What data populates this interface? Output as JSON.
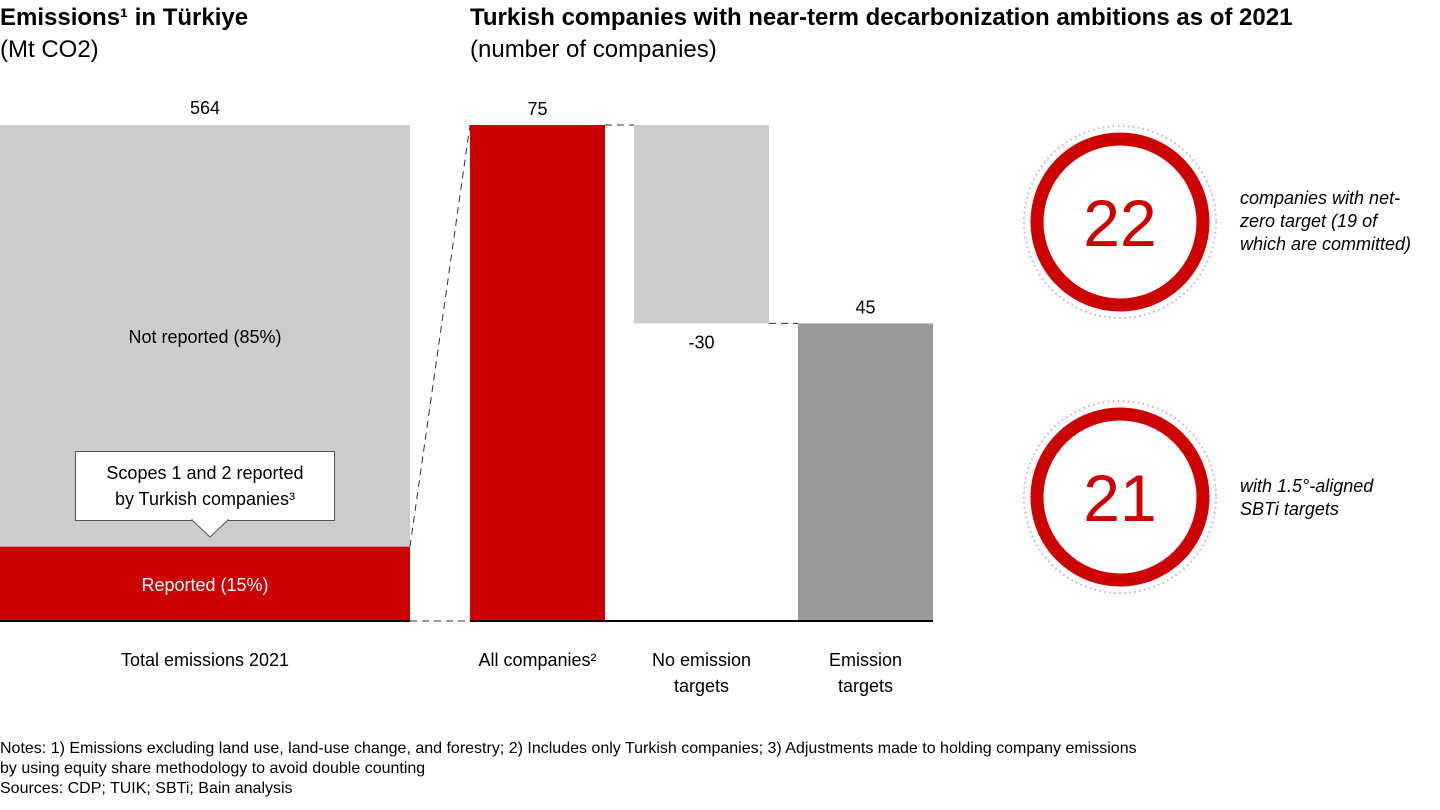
{
  "left_title": {
    "main": "Emissions¹ in Türkiye",
    "sub": "(Mt CO2)"
  },
  "right_title": {
    "main": "Turkish companies with near-term decarbonization ambitions as of 2021",
    "sub": "(number of companies)"
  },
  "callout": {
    "line1": "Scopes 1 and 2 reported",
    "line2": "by Turkish companies³"
  },
  "stats": [
    {
      "value": "22",
      "text": [
        "companies with net-",
        "zero target (19 of",
        "which are committed)"
      ]
    },
    {
      "value": "21",
      "text": [
        "with 1.5°-aligned",
        "SBTi targets"
      ]
    }
  ],
  "notes": {
    "line1": "Notes: 1) Emissions excluding land use, land-use change, and forestry; 2) Includes only Turkish companies; 3) Adjustments made to holding company emissions",
    "line2": "by using equity share methodology to avoid double counting",
    "sources": "Sources: CDP; TUIK; SBTi; Bain analysis"
  },
  "colors": {
    "red": "#cc0000",
    "light_gray": "#cccccc",
    "dark_gray": "#999999",
    "ring_dots": "#d9a8d3"
  },
  "chart_data": [
    {
      "type": "bar",
      "stacked": true,
      "categories": [
        "Total emissions 2021"
      ],
      "total": 564,
      "total_label": "564",
      "series": [
        {
          "name": "Reported (15%)",
          "share": 0.15,
          "color": "#cc0000"
        },
        {
          "name": "Not reported (85%)",
          "share": 0.85,
          "color": "#cccccc"
        }
      ]
    },
    {
      "type": "bar",
      "waterfall": true,
      "ylim": [
        0,
        75
      ],
      "categories": [
        "All companies²",
        "No emission targets",
        "Emission targets"
      ],
      "category_lines": [
        [
          "All companies²"
        ],
        [
          "No emission",
          "targets"
        ],
        [
          "Emission",
          "targets"
        ]
      ],
      "values": [
        75,
        -30,
        45
      ],
      "value_labels": [
        "75",
        "-30",
        "45"
      ],
      "kinds": [
        "total",
        "delta",
        "total"
      ],
      "colors": [
        "#cc0000",
        "#cccccc",
        "#999999"
      ]
    }
  ]
}
